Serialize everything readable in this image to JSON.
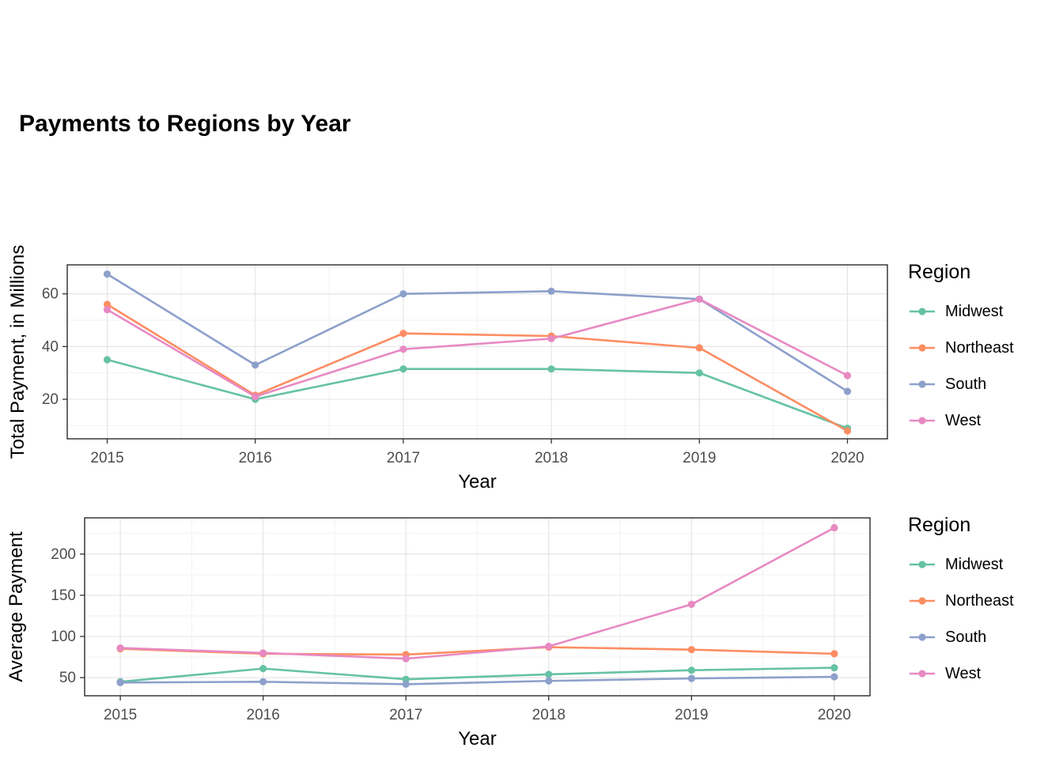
{
  "page_title": "Payments to Regions by Year",
  "colors": {
    "Midwest": "#66C2A5",
    "Northeast": "#FC8D62",
    "South": "#8DA0CB",
    "West": "#E78AC3"
  },
  "legend": {
    "title": "Region",
    "entries": [
      "Midwest",
      "Northeast",
      "South",
      "West"
    ]
  },
  "chart_data": [
    {
      "type": "line",
      "title": "Payments to Regions by Year",
      "xlabel": "Year",
      "ylabel": "Total Payment, in Millions",
      "x": [
        2015,
        2016,
        2017,
        2018,
        2019,
        2020
      ],
      "xlim": [
        2014.73,
        2020.27
      ],
      "ylim": [
        5,
        71
      ],
      "yticks": [
        20,
        40,
        60
      ],
      "yminor": [
        10,
        30,
        50,
        70
      ],
      "xminor": [
        2015.5,
        2016.5,
        2017.5,
        2018.5,
        2019.5
      ],
      "grid": true,
      "legend_position": "right",
      "legend_title": "Region",
      "series": [
        {
          "name": "Midwest",
          "color": "#66C2A5",
          "values": [
            35,
            20,
            31.5,
            31.5,
            30,
            9
          ]
        },
        {
          "name": "Northeast",
          "color": "#FC8D62",
          "values": [
            56,
            21.5,
            45,
            44,
            39.5,
            8
          ]
        },
        {
          "name": "South",
          "color": "#8DA0CB",
          "values": [
            67.5,
            33,
            60,
            61,
            58,
            23
          ]
        },
        {
          "name": "West",
          "color": "#E78AC3",
          "values": [
            54,
            21,
            39,
            43,
            58,
            29
          ]
        }
      ]
    },
    {
      "type": "line",
      "title": "",
      "xlabel": "Year",
      "ylabel": "Average Payment",
      "x": [
        2015,
        2016,
        2017,
        2018,
        2019,
        2020
      ],
      "xlim": [
        2014.75,
        2020.25
      ],
      "ylim": [
        28,
        244
      ],
      "yticks": [
        50,
        100,
        150,
        200
      ],
      "yminor": [
        75,
        125,
        175,
        225
      ],
      "xminor": [
        2015.5,
        2016.5,
        2017.5,
        2018.5,
        2019.5
      ],
      "grid": true,
      "legend_position": "right",
      "legend_title": "Region",
      "series": [
        {
          "name": "Midwest",
          "color": "#66C2A5",
          "values": [
            45,
            61,
            48,
            54,
            59,
            62
          ]
        },
        {
          "name": "Northeast",
          "color": "#FC8D62",
          "values": [
            85,
            79,
            78,
            87,
            84,
            79
          ]
        },
        {
          "name": "South",
          "color": "#8DA0CB",
          "values": [
            44,
            45,
            42,
            46,
            49,
            51
          ]
        },
        {
          "name": "West",
          "color": "#E78AC3",
          "values": [
            86,
            80,
            73,
            88,
            139,
            232
          ]
        }
      ]
    }
  ]
}
